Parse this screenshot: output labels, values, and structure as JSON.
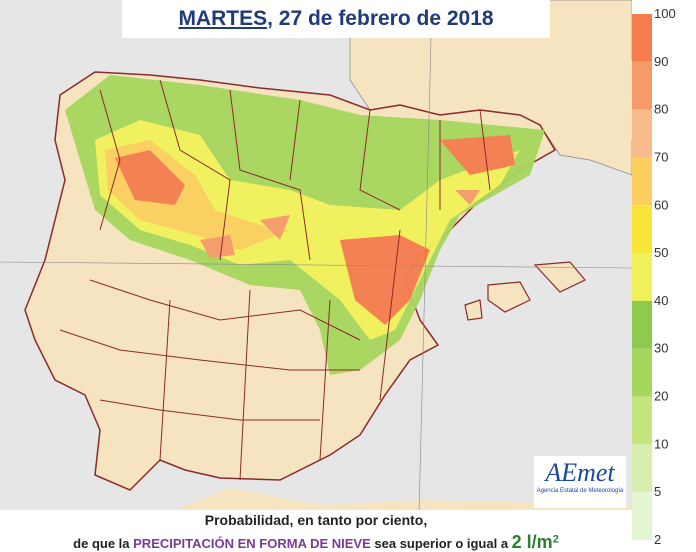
{
  "header": {
    "day": "MARTES",
    "date": ", 27 de febrero de 2018"
  },
  "legend": {
    "ticks": [
      100,
      90,
      80,
      70,
      60,
      50,
      40,
      30,
      20,
      10,
      5,
      2
    ],
    "band_colors": [
      "#f47c4e",
      "#f69a6a",
      "#f9bb8c",
      "#fbcf5e",
      "#f9e53a",
      "#f1f25a",
      "#8dca4e",
      "#a6d65e",
      "#c4e47e",
      "#d6efae",
      "#e2f6d2"
    ]
  },
  "logo": {
    "brand": "AEmet",
    "subtitle": "Agencia Estatal de Meteorología"
  },
  "caption": {
    "line1": "Probabilidad, en tanto por ciento,",
    "lead": "de que la ",
    "highlight": "PRECIPITACIÓN EN FORMA DE NIEVE",
    "middle": " sea superior o igual a ",
    "amount": "2 l/m",
    "exponent": "2"
  }
}
